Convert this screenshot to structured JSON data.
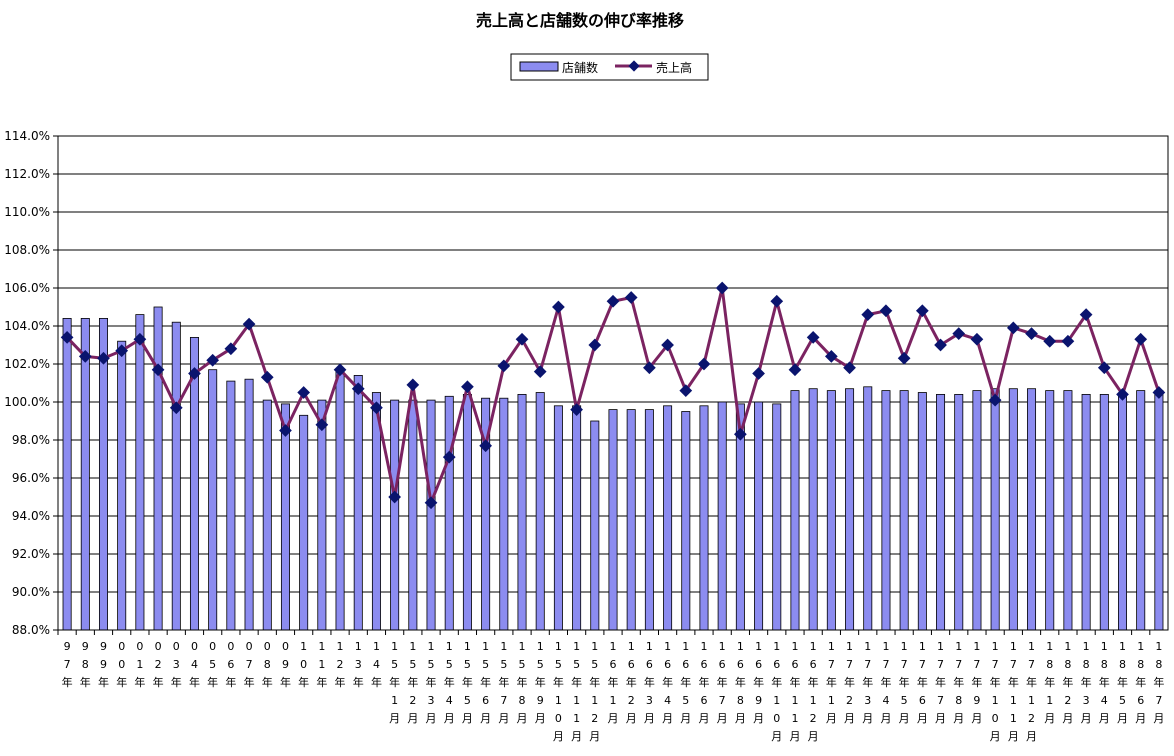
{
  "chart_data": {
    "type": "bar",
    "title": "売上高と店舗数の伸び率推移",
    "legend_position": "top",
    "grid": true,
    "y_axis": {
      "min": 88,
      "max": 114,
      "step": 2,
      "tick_labels": [
        "88.0%",
        "90.0%",
        "92.0%",
        "94.0%",
        "96.0%",
        "98.0%",
        "100.0%",
        "102.0%",
        "104.0%",
        "106.0%",
        "108.0%",
        "110.0%",
        "112.0%",
        "114.0%"
      ]
    },
    "categories": [
      "97年",
      "98年",
      "99年",
      "00年",
      "01年",
      "02年",
      "03年",
      "04年",
      "05年",
      "06年",
      "07年",
      "08年",
      "09年",
      "10年",
      "11年",
      "12年",
      "13年",
      "14年",
      "15年1月",
      "15年2月",
      "15年3月",
      "15年4月",
      "15年5月",
      "15年6月",
      "15年7月",
      "15年8月",
      "15年9月",
      "15年10月",
      "15年11月",
      "15年12月",
      "16年1月",
      "16年2月",
      "16年3月",
      "16年4月",
      "16年5月",
      "16年6月",
      "16年7月",
      "16年8月",
      "16年9月",
      "16年10月",
      "16年11月",
      "16年12月",
      "17年1月",
      "17年2月",
      "17年3月",
      "17年4月",
      "17年5月",
      "17年6月",
      "17年7月",
      "17年8月",
      "17年9月",
      "17年10月",
      "17年11月",
      "17年12月",
      "18年1月",
      "18年2月",
      "18年3月",
      "18年4月",
      "18年5月",
      "18年6月",
      "18年7月"
    ],
    "series": [
      {
        "name": "店舗数",
        "type": "bar",
        "color": "#8c8cf0",
        "values": [
          104.4,
          104.4,
          104.4,
          103.2,
          104.6,
          105.0,
          104.2,
          103.4,
          101.7,
          101.1,
          101.2,
          100.1,
          99.9,
          99.3,
          100.1,
          101.7,
          101.4,
          100.5,
          100.1,
          100.1,
          100.1,
          100.3,
          100.4,
          100.2,
          100.2,
          100.4,
          100.5,
          99.8,
          99.8,
          99.0,
          99.6,
          99.6,
          99.6,
          99.8,
          99.5,
          99.8,
          100.0,
          99.9,
          100.0,
          99.9,
          100.6,
          100.7,
          100.6,
          100.7,
          100.8,
          100.6,
          100.6,
          100.5,
          100.4,
          100.4,
          100.6,
          100.7,
          100.7,
          100.7,
          100.6,
          100.6,
          100.4,
          100.4,
          100.4,
          100.6,
          100.6
        ]
      },
      {
        "name": "売上高",
        "type": "line",
        "color": "#7b2361",
        "marker_color": "#0a146e",
        "values": [
          103.4,
          102.4,
          102.3,
          102.7,
          103.3,
          101.7,
          99.7,
          101.5,
          102.2,
          102.8,
          104.1,
          101.3,
          98.5,
          100.5,
          98.8,
          101.7,
          100.7,
          99.7,
          95.0,
          100.9,
          94.7,
          97.1,
          100.8,
          97.7,
          101.9,
          103.3,
          101.6,
          105.0,
          99.6,
          103.0,
          105.3,
          105.5,
          101.8,
          103.0,
          100.6,
          102.0,
          106.0,
          98.3,
          101.5,
          105.3,
          101.7,
          103.4,
          102.4,
          101.8,
          104.6,
          104.8,
          102.3,
          104.8,
          103.0,
          103.6,
          103.3,
          100.1,
          103.9,
          103.6,
          103.2,
          103.2,
          104.6,
          101.8,
          100.4,
          103.3,
          100.5
        ]
      }
    ]
  }
}
